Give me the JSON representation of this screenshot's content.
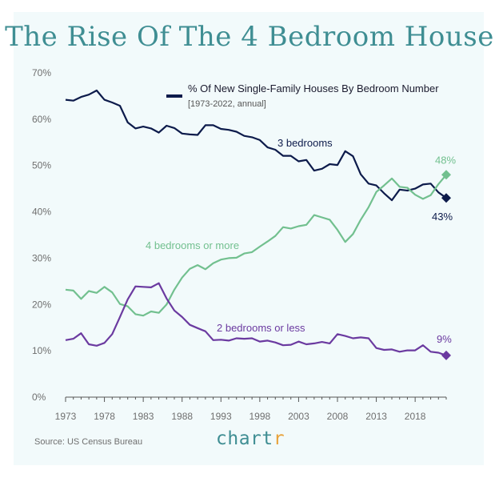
{
  "title": "The Rise Of The 4 Bedroom House",
  "legend": {
    "title": "% Of New Single-Family Houses By Bedroom Number",
    "subtitle": "[1973-2022, annual]"
  },
  "source": "Source: US Census Bureau",
  "brand": {
    "main": "chart",
    "accent": "r"
  },
  "colors": {
    "three": "#0d1b4b",
    "four": "#72c08f",
    "two": "#6b3aa0",
    "title": "#3f8e93",
    "card": "#f2fafb"
  },
  "chart_data": {
    "type": "line",
    "ylim": [
      0,
      70
    ],
    "yticks": [
      "0%",
      "10%",
      "20%",
      "30%",
      "40%",
      "50%",
      "60%",
      "70%"
    ],
    "xticks": [
      "1973",
      "1978",
      "1983",
      "1988",
      "1993",
      "1998",
      "2003",
      "2008",
      "2013",
      "2018"
    ],
    "x": [
      1973,
      1974,
      1975,
      1976,
      1977,
      1978,
      1979,
      1980,
      1981,
      1982,
      1983,
      1984,
      1985,
      1986,
      1987,
      1988,
      1989,
      1990,
      1991,
      1992,
      1993,
      1994,
      1995,
      1996,
      1997,
      1998,
      1999,
      2000,
      2001,
      2002,
      2003,
      2004,
      2005,
      2006,
      2007,
      2008,
      2009,
      2010,
      2011,
      2012,
      2013,
      2014,
      2015,
      2016,
      2017,
      2018,
      2019,
      2020,
      2021,
      2022
    ],
    "series": [
      {
        "name": "3 bedrooms",
        "key": "three",
        "end_label": "43%",
        "values": [
          64.2,
          64.0,
          64.8,
          65.3,
          66.2,
          64.2,
          63.6,
          62.9,
          59.3,
          58.0,
          58.4,
          58.0,
          57.1,
          58.6,
          58.1,
          56.9,
          56.7,
          56.6,
          58.7,
          58.7,
          57.9,
          57.7,
          57.3,
          56.4,
          56.1,
          55.5,
          53.9,
          53.4,
          52.1,
          52.1,
          50.9,
          51.2,
          48.9,
          49.3,
          50.3,
          50.1,
          53.1,
          52.0,
          48.1,
          46.1,
          45.7,
          44.0,
          42.5,
          44.8,
          44.6,
          45.0,
          45.9,
          46.1,
          44.2,
          43.0
        ]
      },
      {
        "name": "4 bedrooms or more",
        "key": "four",
        "end_label": "48%",
        "values": [
          23.2,
          23.0,
          21.2,
          22.9,
          22.5,
          23.8,
          22.6,
          20.1,
          19.6,
          17.9,
          17.6,
          18.5,
          18.2,
          20.0,
          23.2,
          25.8,
          27.7,
          28.5,
          27.6,
          28.9,
          29.7,
          30.0,
          30.1,
          31.0,
          31.3,
          32.5,
          33.6,
          34.8,
          36.7,
          36.4,
          36.9,
          37.2,
          39.3,
          38.8,
          38.3,
          36.1,
          33.5,
          35.2,
          38.3,
          41.0,
          44.3,
          45.7,
          47.2,
          45.4,
          45.2,
          43.7,
          42.8,
          43.6,
          46.0,
          48.0
        ]
      },
      {
        "name": "2 bedrooms or less",
        "key": "two",
        "end_label": "9%",
        "values": [
          12.3,
          12.6,
          13.8,
          11.4,
          11.1,
          11.7,
          13.6,
          17.3,
          21.1,
          23.9,
          23.8,
          23.7,
          24.6,
          21.3,
          18.7,
          17.3,
          15.6,
          14.9,
          14.2,
          12.3,
          12.4,
          12.2,
          12.7,
          12.6,
          12.7,
          12.0,
          12.2,
          11.8,
          11.2,
          11.3,
          12.0,
          11.4,
          11.6,
          11.9,
          11.6,
          13.6,
          13.2,
          12.7,
          12.9,
          12.7,
          10.6,
          10.2,
          10.3,
          9.8,
          10.1,
          10.1,
          11.2,
          9.8,
          9.6,
          9.0
        ]
      }
    ],
    "annotations": [
      "3 bedrooms",
      "4 bedrooms or more",
      "2 bedrooms or less"
    ],
    "legend_position": "top-right",
    "grid": false
  }
}
